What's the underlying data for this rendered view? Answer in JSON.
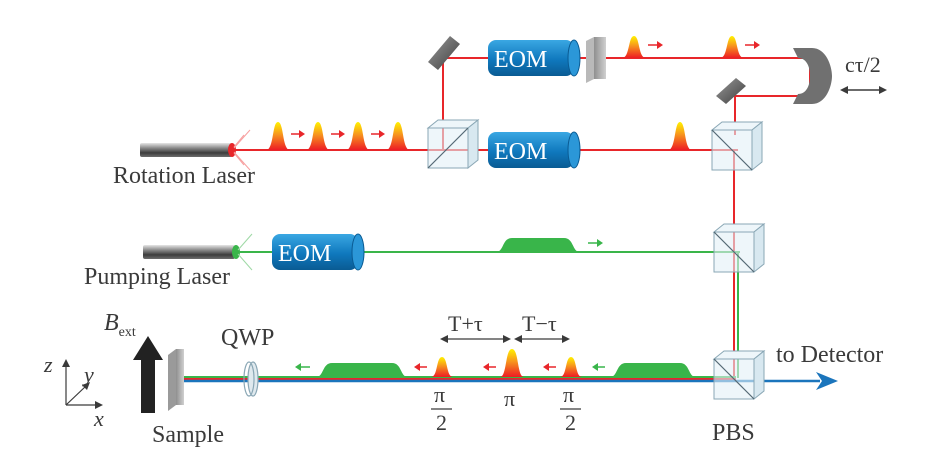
{
  "labels": {
    "rotation_laser": "Rotation Laser",
    "pumping_laser": "Pumping Laser",
    "eom": "EOM",
    "ctau": "cτ/2",
    "qwp": "QWP",
    "sample": "Sample",
    "pbs": "PBS",
    "detector": "to Detector",
    "b_ext_main": "B",
    "b_ext_sub": "ext",
    "t_plus_tau": "T+τ",
    "t_minus_tau": "T−τ",
    "pi": "π",
    "pi_half_num": "π",
    "pi_half_den": "2",
    "axis_x": "x",
    "axis_y": "y",
    "axis_z": "z"
  },
  "colors": {
    "rotation_beam": "#e8262a",
    "pump_beam": "#3ab54a",
    "probe_beam": "#1b75bc",
    "eom_body": "#1f8ccf",
    "pulse_orange": "#f7941d",
    "pulse_green": "#39b54a"
  },
  "icons": [
    "laser-rod",
    "eom-crystal",
    "beam-splitter-cube",
    "mirror",
    "retroreflector",
    "waveplate",
    "sample-plate",
    "arrow"
  ]
}
